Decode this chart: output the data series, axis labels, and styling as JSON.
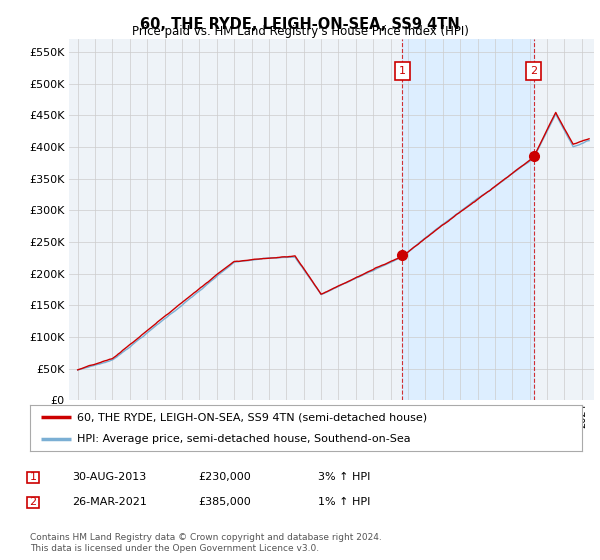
{
  "title": "60, THE RYDE, LEIGH-ON-SEA, SS9 4TN",
  "subtitle": "Price paid vs. HM Land Registry's House Price Index (HPI)",
  "ytick_values": [
    0,
    50000,
    100000,
    150000,
    200000,
    250000,
    300000,
    350000,
    400000,
    450000,
    500000,
    550000
  ],
  "ylim": [
    0,
    570000
  ],
  "xlim_start": 1994.5,
  "xlim_end": 2024.7,
  "transaction1_x": 2013.667,
  "transaction1_y": 230000,
  "transaction2_x": 2021.22,
  "transaction2_y": 385000,
  "legend_line1": "60, THE RYDE, LEIGH-ON-SEA, SS9 4TN (semi-detached house)",
  "legend_line2": "HPI: Average price, semi-detached house, Southend-on-Sea",
  "legend_line1_color": "#cc0000",
  "legend_line2_color": "#7bafd4",
  "shade_color": "#ddeeff",
  "table_row1": [
    "1",
    "30-AUG-2013",
    "£230,000",
    "3% ↑ HPI"
  ],
  "table_row2": [
    "2",
    "26-MAR-2021",
    "£385,000",
    "1% ↑ HPI"
  ],
  "footer": "Contains HM Land Registry data © Crown copyright and database right 2024.\nThis data is licensed under the Open Government Licence v3.0.",
  "grid_color": "#cccccc",
  "background_color": "#ffffff",
  "plot_bg_color": "#eef3f8"
}
